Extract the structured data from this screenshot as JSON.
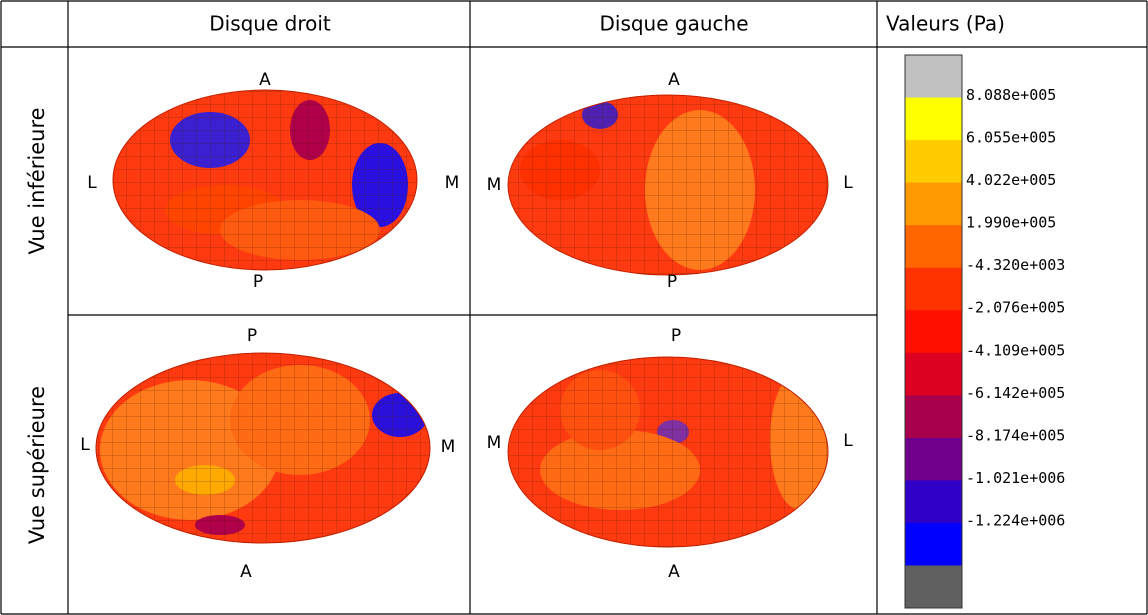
{
  "table": {
    "header": [
      "Disque droit",
      "Disque gauche",
      "Valeurs (Pa)"
    ],
    "rows": [
      {
        "label": "Vue inférieure",
        "cells": [
          {
            "top": "A",
            "bottom": "P",
            "left": "L",
            "right": "M"
          },
          {
            "top": "A",
            "bottom": "P",
            "left": "M",
            "right": "L"
          }
        ]
      },
      {
        "label": "Vue supérieure",
        "cells": [
          {
            "top": "P",
            "bottom": "A",
            "left": "L",
            "right": "M"
          },
          {
            "top": "P",
            "bottom": "A",
            "left": "M",
            "right": "L"
          }
        ]
      }
    ]
  },
  "legend": {
    "colors": [
      "#c0c0c0",
      "#ffff00",
      "#ffcc00",
      "#ff9900",
      "#ff6600",
      "#ff3300",
      "#ff1000",
      "#dd0022",
      "#a8004c",
      "#70008c",
      "#3000c8",
      "#0000ff",
      "#606060"
    ],
    "labels": [
      "8.088e+005",
      "6.055e+005",
      "4.022e+005",
      "1.990e+005",
      "-4.320e+003",
      "-2.076e+005",
      "-4.109e+005",
      "-6.142e+005",
      "-8.174e+005",
      "-1.021e+006",
      "-1.224e+006"
    ]
  }
}
